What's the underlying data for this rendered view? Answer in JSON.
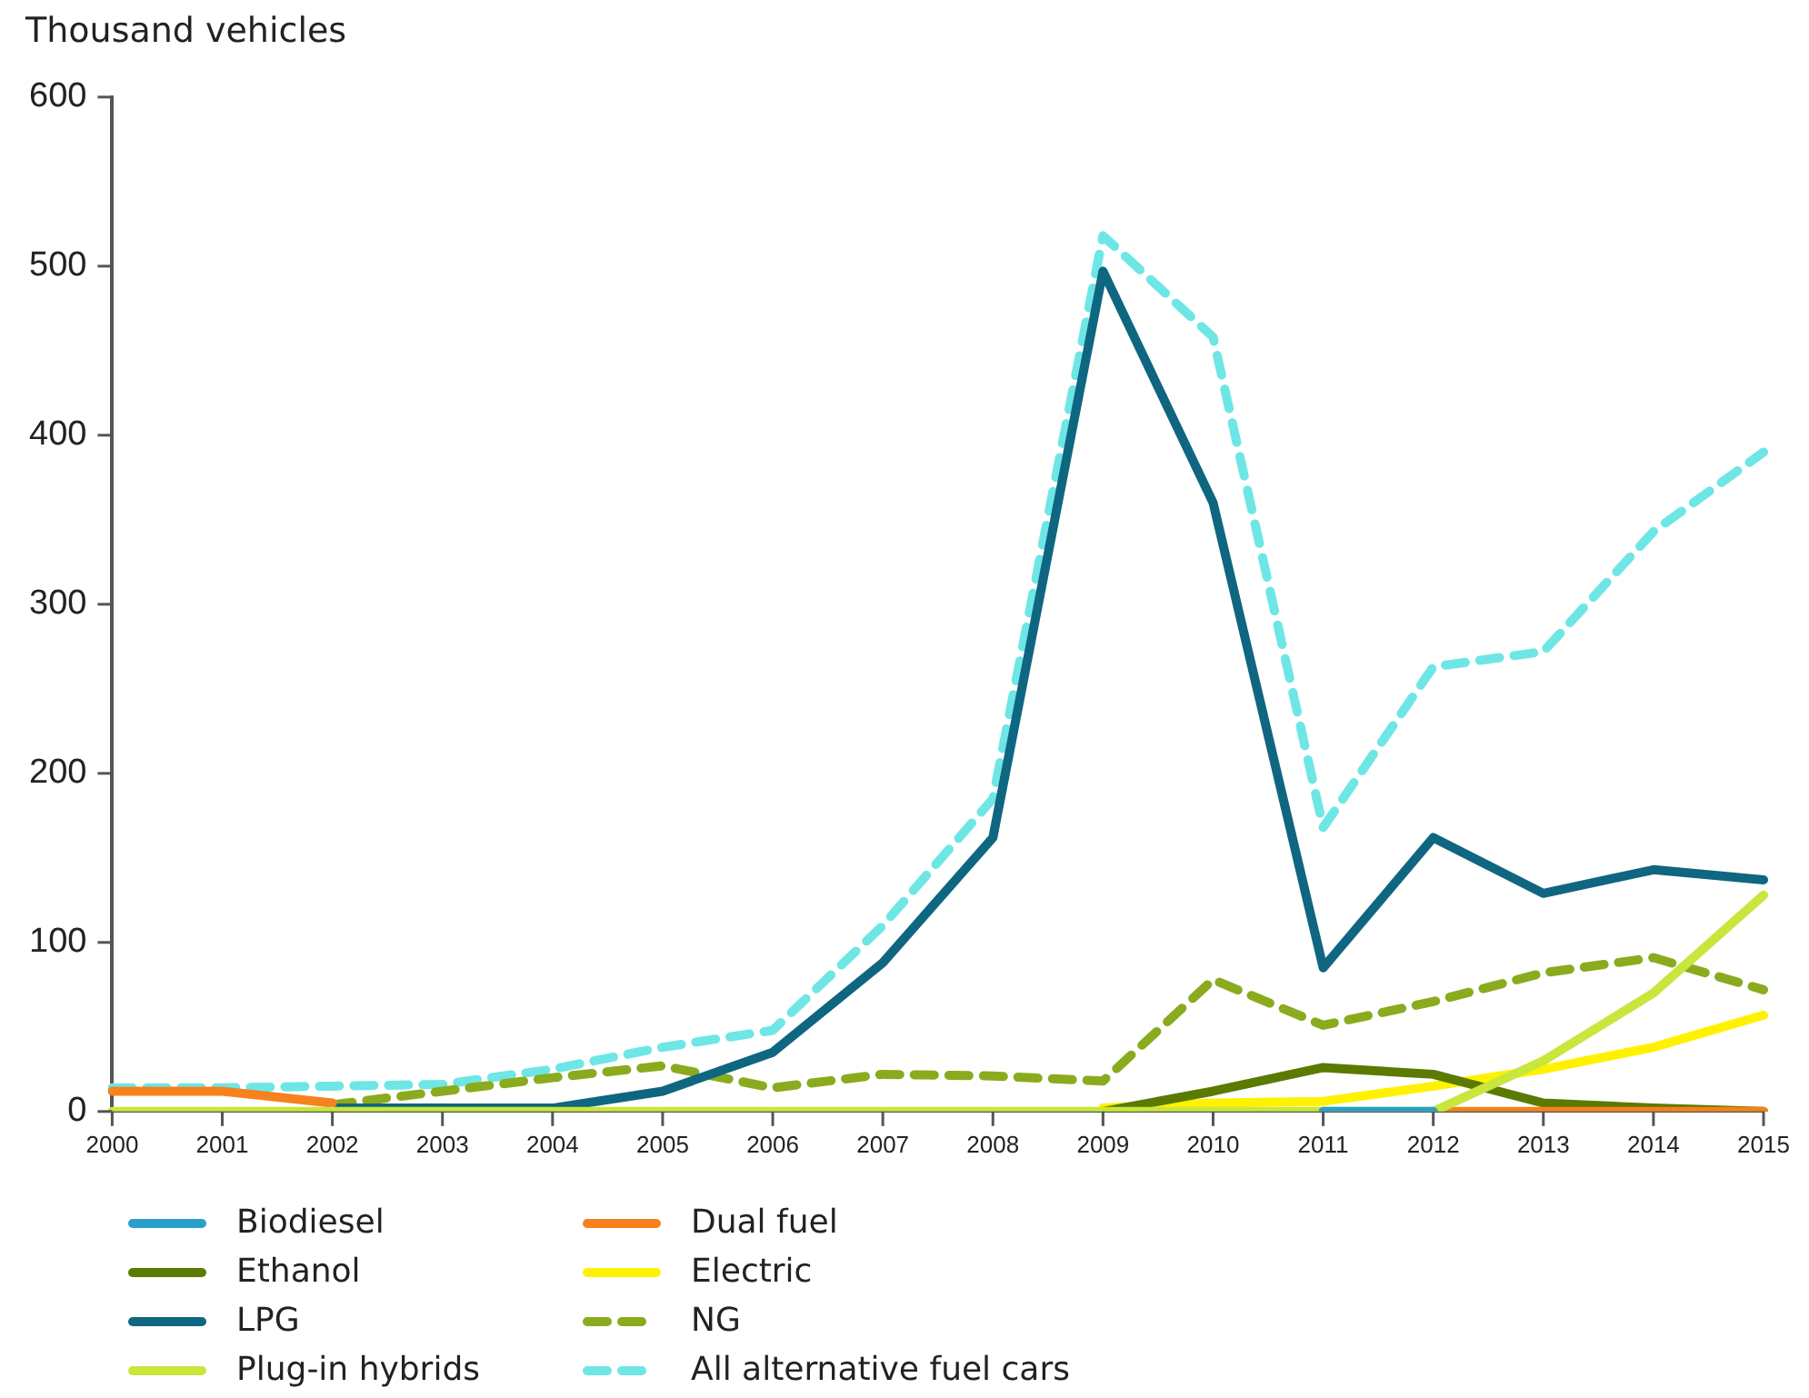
{
  "chart_data": {
    "type": "line",
    "ylabel": "Thousand vehicles",
    "categories": [
      "2000",
      "2001",
      "2002",
      "2003",
      "2004",
      "2005",
      "2006",
      "2007",
      "2008",
      "2009",
      "2010",
      "2011",
      "2012",
      "2013",
      "2014",
      "2015"
    ],
    "ylim": [
      0,
      600
    ],
    "yticks": [
      0,
      100,
      200,
      300,
      400,
      500,
      600
    ],
    "grid": false,
    "legend": "bottom",
    "marker": "none",
    "series": [
      {
        "name": "Biodiesel",
        "color": "#2a9fc9",
        "line_style": "solid",
        "values": [
          null,
          null,
          null,
          null,
          null,
          null,
          null,
          null,
          null,
          null,
          null,
          0,
          0,
          null,
          null,
          null
        ]
      },
      {
        "name": "Dual fuel",
        "color": "#f5821f",
        "line_style": "solid",
        "values": [
          12,
          12,
          5,
          null,
          null,
          null,
          null,
          null,
          null,
          null,
          null,
          null,
          0,
          0,
          0,
          0
        ]
      },
      {
        "name": "Ethanol",
        "color": "#5a7a00",
        "line_style": "solid",
        "values": [
          null,
          null,
          null,
          null,
          null,
          null,
          null,
          null,
          null,
          0,
          12,
          26,
          22,
          5,
          2,
          0
        ]
      },
      {
        "name": "Electric",
        "color": "#fff200",
        "line_style": "solid",
        "values": [
          null,
          null,
          null,
          null,
          null,
          null,
          null,
          null,
          null,
          2,
          5,
          6,
          15,
          25,
          38,
          57
        ]
      },
      {
        "name": "LPG",
        "color": "#0f6680",
        "line_style": "solid",
        "values": [
          null,
          null,
          2,
          2,
          2,
          12,
          35,
          88,
          162,
          497,
          360,
          85,
          162,
          129,
          143,
          137
        ]
      },
      {
        "name": "NG",
        "color": "#8aab1e",
        "line_style": "dashed",
        "values": [
          null,
          null,
          4,
          12,
          20,
          27,
          14,
          22,
          21,
          18,
          78,
          51,
          65,
          82,
          91,
          72
        ]
      },
      {
        "name": "Plug-in hybrids",
        "color": "#c8e63c",
        "line_style": "solid",
        "values": [
          0,
          0,
          0,
          0,
          0,
          0,
          0,
          0,
          0,
          0,
          0,
          0,
          0,
          30,
          70,
          128
        ]
      },
      {
        "name": "All alternative fuel cars",
        "color": "#6ee6e6",
        "line_style": "dashed",
        "values": [
          14,
          14,
          15,
          16,
          25,
          38,
          48,
          110,
          185,
          518,
          458,
          168,
          263,
          272,
          343,
          390
        ]
      }
    ]
  }
}
